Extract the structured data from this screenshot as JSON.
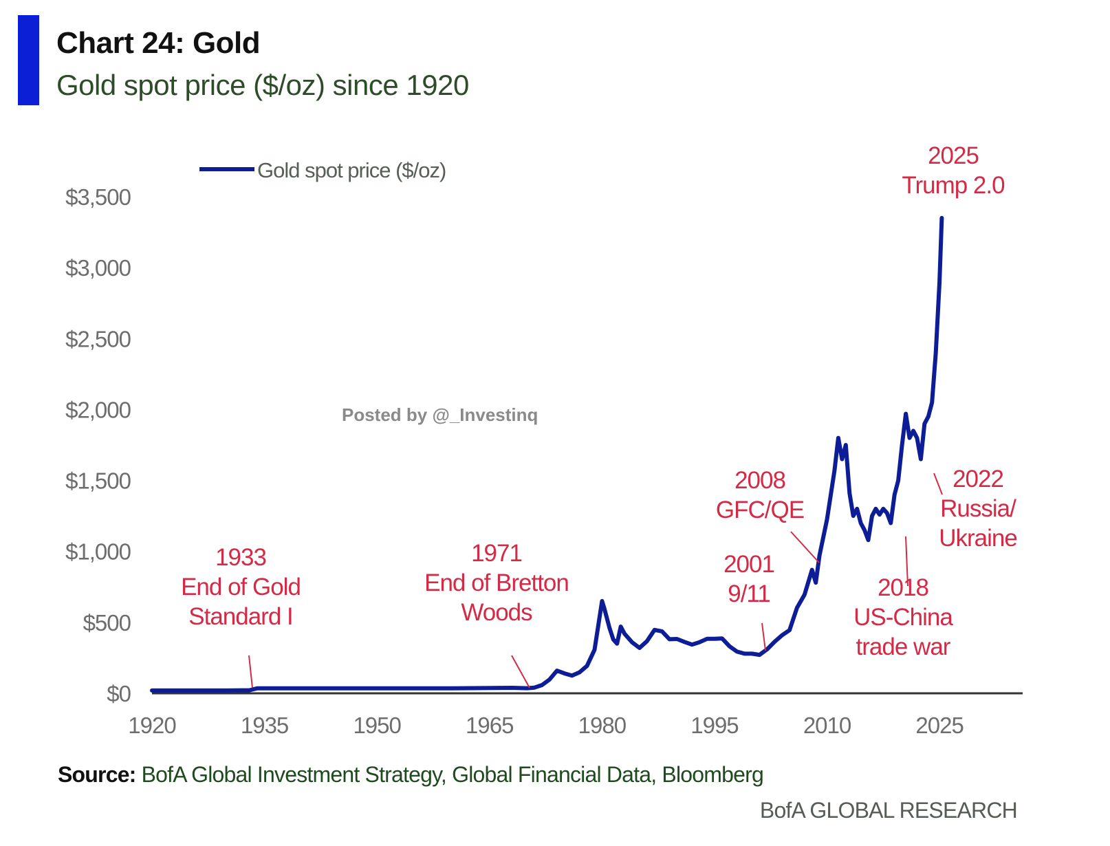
{
  "header": {
    "title": "Chart 24: Gold",
    "subtitle": "Gold spot price ($/oz) since 1920"
  },
  "footer": {
    "source_label": "Source:",
    "source_text": " BofA Global Investment Strategy, Global Financial Data, Bloomberg",
    "brand": "BofA GLOBAL RESEARCH"
  },
  "watermark": "Posted by @_Investinq",
  "colors": {
    "accent": "#0a1fd6",
    "series": "#0d1d96",
    "annotation": "#d42a45",
    "axis_text": "#6d6d6d",
    "baseline": "#333333"
  },
  "chart_data": {
    "type": "line",
    "legend": "Gold spot price ($/oz)",
    "legend_position": "top-left",
    "grid": false,
    "xlim": [
      1920,
      2037
    ],
    "ylim": [
      0,
      3500
    ],
    "x_ticks": [
      1920,
      1935,
      1950,
      1965,
      1980,
      1995,
      2010,
      2025
    ],
    "y_ticks": [
      {
        "value": 0,
        "label": "$0"
      },
      {
        "value": 500,
        "label": "$500"
      },
      {
        "value": 1000,
        "label": "$1,000"
      },
      {
        "value": 1500,
        "label": "$1,500"
      },
      {
        "value": 2000,
        "label": "$2,000"
      },
      {
        "value": 2500,
        "label": "$2,500"
      },
      {
        "value": 3000,
        "label": "$3,000"
      },
      {
        "value": 3500,
        "label": "$3,500"
      }
    ],
    "series": [
      {
        "name": "Gold spot price ($/oz)",
        "x": [
          1920,
          1925,
          1930,
          1933,
          1934,
          1940,
          1950,
          1960,
          1968,
          1970,
          1971,
          1972,
          1973,
          1974,
          1975,
          1976,
          1977,
          1978,
          1979,
          1980,
          1980.3,
          1980.8,
          1981,
          1981.5,
          1982,
          1982.5,
          1983,
          1984,
          1985,
          1986,
          1987,
          1988,
          1989,
          1990,
          1991,
          1992,
          1993,
          1994,
          1995,
          1996,
          1997,
          1998,
          1999,
          2000,
          2001,
          2002,
          2003,
          2004,
          2005,
          2006,
          2007,
          2008,
          2008.5,
          2009,
          2009.5,
          2010,
          2011,
          2011.5,
          2012,
          2012.5,
          2013,
          2013.5,
          2014,
          2014.5,
          2015,
          2015.5,
          2016,
          2016.5,
          2017,
          2017.5,
          2018,
          2018.5,
          2019,
          2019.5,
          2020,
          2020.5,
          2021,
          2021.5,
          2022,
          2022.5,
          2023,
          2023.5,
          2024,
          2024.5,
          2025,
          2025.3
        ],
        "values": [
          20,
          20,
          20,
          22,
          35,
          35,
          35,
          35,
          39,
          36,
          40,
          58,
          97,
          160,
          140,
          125,
          148,
          193,
          307,
          650,
          600,
          500,
          460,
          380,
          350,
          470,
          420,
          360,
          320,
          368,
          447,
          437,
          381,
          383,
          362,
          343,
          360,
          384,
          384,
          387,
          331,
          294,
          279,
          279,
          271,
          310,
          363,
          409,
          445,
          603,
          695,
          870,
          780,
          972,
          1100,
          1225,
          1570,
          1800,
          1650,
          1750,
          1410,
          1250,
          1300,
          1200,
          1150,
          1080,
          1250,
          1300,
          1260,
          1300,
          1270,
          1200,
          1400,
          1500,
          1750,
          1970,
          1800,
          1850,
          1800,
          1650,
          1900,
          1950,
          2050,
          2400,
          2900,
          3350
        ]
      }
    ],
    "annotations": [
      {
        "label": "1933\nEnd of Gold\nStandard I",
        "year": 1933,
        "value": 20
      },
      {
        "label": "1971\nEnd of Bretton\nWoods",
        "year": 1971,
        "value": 40
      },
      {
        "label": "2001\n9/11",
        "year": 2001,
        "value": 271
      },
      {
        "label": "2008\nGFC/QE",
        "year": 2008,
        "value": 870
      },
      {
        "label": "2018\nUS-China\ntrade war",
        "year": 2018,
        "value": 1270
      },
      {
        "label": "2022\nRussia/\nUkraine",
        "year": 2022,
        "value": 1800
      },
      {
        "label": "2025\nTrump 2.0",
        "year": 2025,
        "value": 3350
      }
    ]
  }
}
